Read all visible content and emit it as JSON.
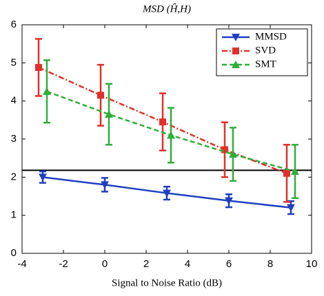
{
  "chart_data": {
    "type": "line",
    "title": "MSD (Ĥ,H)",
    "x_label": "Signal to Noise Ratio (dB)",
    "xlim": [
      -4,
      10
    ],
    "xticks": [
      -4,
      -2,
      0,
      2,
      4,
      6,
      8,
      10
    ],
    "ylim": [
      0,
      6
    ],
    "yticks": [
      0,
      1,
      2,
      3,
      4,
      5,
      6
    ],
    "hline": 2.18,
    "hline_color": "#000000",
    "legend": "upper right",
    "series": [
      {
        "name": "MMSD",
        "color": "#1f3fbf",
        "dash": "none",
        "marker": "triangle-down",
        "x": [
          -3,
          0,
          3,
          6,
          9
        ],
        "values": [
          2.0,
          1.8,
          1.58,
          1.38,
          1.2
        ],
        "errors": [
          0.15,
          0.18,
          0.17,
          0.17,
          0.17
        ]
      },
      {
        "name": "SVD",
        "color": "#e0302a",
        "dash": "8 3 2 3",
        "marker": "square",
        "x": [
          -3.2,
          -0.2,
          2.8,
          5.8,
          8.8
        ],
        "values": [
          4.88,
          4.15,
          3.45,
          2.72,
          2.1
        ],
        "errors": [
          0.75,
          0.8,
          0.75,
          0.72,
          0.75
        ]
      },
      {
        "name": "SMT",
        "color": "#2fae3a",
        "dash": "7 4",
        "marker": "triangle-up",
        "x": [
          -2.8,
          0.2,
          3.2,
          6.2,
          9.2
        ],
        "values": [
          4.25,
          3.65,
          3.1,
          2.6,
          2.15
        ],
        "errors": [
          0.82,
          0.8,
          0.72,
          0.7,
          0.7
        ]
      }
    ]
  }
}
